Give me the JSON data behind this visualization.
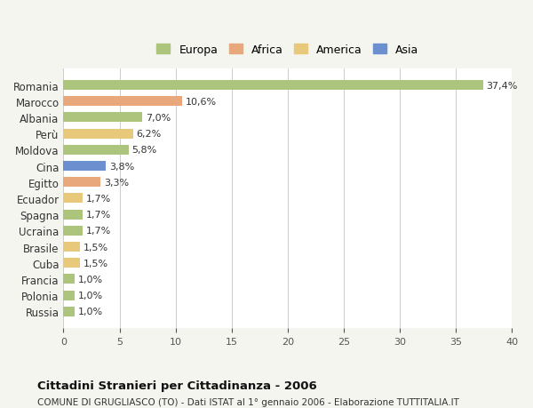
{
  "categories": [
    "Romania",
    "Marocco",
    "Albania",
    "Perù",
    "Moldova",
    "Cina",
    "Egitto",
    "Ecuador",
    "Spagna",
    "Ucraina",
    "Brasile",
    "Cuba",
    "Francia",
    "Polonia",
    "Russia"
  ],
  "values": [
    37.4,
    10.6,
    7.0,
    6.2,
    5.8,
    3.8,
    3.3,
    1.7,
    1.7,
    1.7,
    1.5,
    1.5,
    1.0,
    1.0,
    1.0
  ],
  "labels": [
    "37,4%",
    "10,6%",
    "7,0%",
    "6,2%",
    "5,8%",
    "3,8%",
    "3,3%",
    "1,7%",
    "1,7%",
    "1,7%",
    "1,5%",
    "1,5%",
    "1,0%",
    "1,0%",
    "1,0%"
  ],
  "colors": [
    "#adc47d",
    "#e8a87c",
    "#adc47d",
    "#e8c97c",
    "#adc47d",
    "#6b8fcf",
    "#e8a87c",
    "#e8c97c",
    "#adc47d",
    "#adc47d",
    "#e8c97c",
    "#e8c97c",
    "#adc47d",
    "#adc47d",
    "#adc47d"
  ],
  "legend_labels": [
    "Europa",
    "Africa",
    "America",
    "Asia"
  ],
  "legend_colors": [
    "#adc47d",
    "#e8a87c",
    "#e8c97c",
    "#6b8fcf"
  ],
  "xlim": [
    0,
    40
  ],
  "xticks": [
    0,
    5,
    10,
    15,
    20,
    25,
    30,
    35,
    40
  ],
  "title": "Cittadini Stranieri per Cittadinanza - 2006",
  "subtitle": "COMUNE DI GRUGLIASCO (TO) - Dati ISTAT al 1° gennaio 2006 - Elaborazione TUTTITALIA.IT",
  "background_color": "#f5f5f0",
  "bar_background": "#ffffff",
  "grid_color": "#cccccc"
}
